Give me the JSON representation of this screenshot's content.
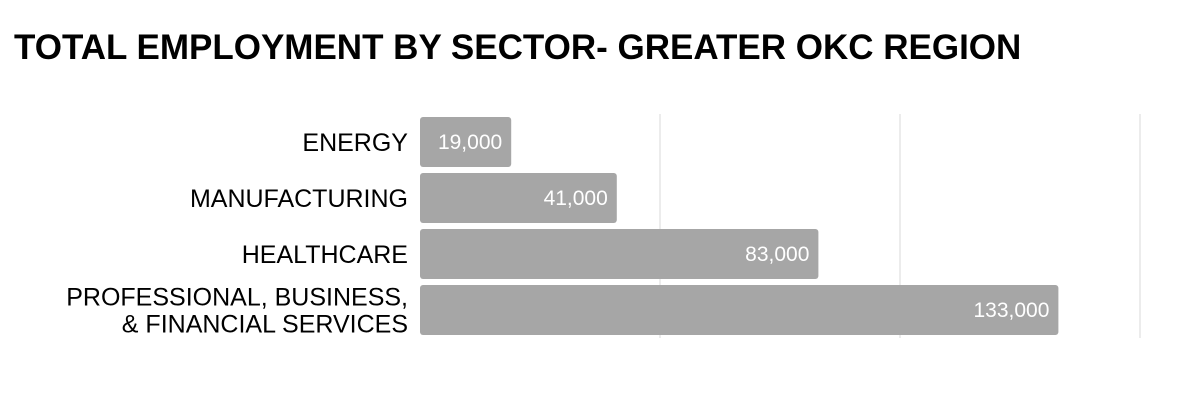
{
  "chart_data": {
    "type": "bar",
    "orientation": "horizontal",
    "title": "TOTAL EMPLOYMENT BY SECTOR- GREATER OKC REGION",
    "categories": [
      [
        "ENERGY"
      ],
      [
        "MANUFACTURING"
      ],
      [
        "HEALTHCARE"
      ],
      [
        "PROFESSIONAL, BUSINESS,",
        "& FINANCIAL SERVICES"
      ]
    ],
    "values": [
      19000,
      41000,
      83000,
      133000
    ],
    "value_labels": [
      "19,000",
      "41,000",
      "83,000",
      "133,000"
    ],
    "xlim": [
      0,
      150000
    ],
    "grid": true,
    "colors": {
      "bar": "#a6a6a6",
      "grid": "#d9d9d9",
      "value_label": "#ffffff",
      "text": "#000000"
    }
  }
}
